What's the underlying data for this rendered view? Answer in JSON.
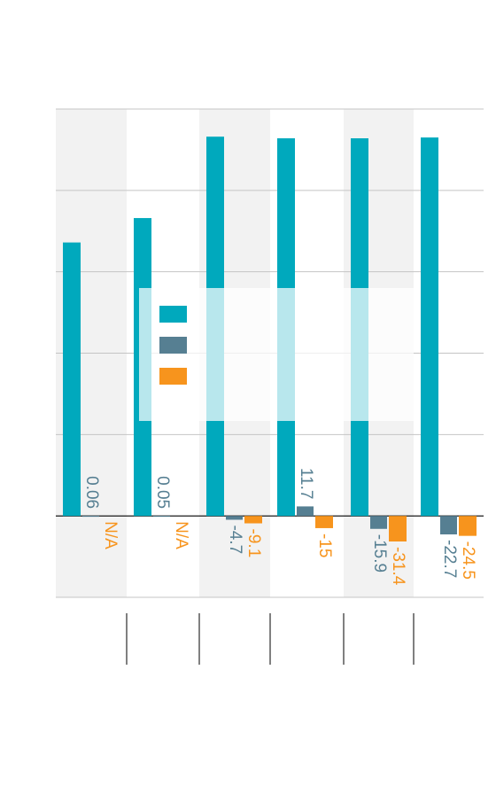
{
  "chart_data": {
    "type": "bar",
    "orientation": "rotated-90-clockwise",
    "categories": [
      "",
      "",
      "",
      "",
      "",
      ""
    ],
    "series": [
      {
        "color": "#00a9bd",
        "values": [
          336,
          366,
          466,
          464,
          464,
          465
        ],
        "labels": [
          null,
          null,
          null,
          null,
          null,
          null
        ]
      },
      {
        "color": "#567f92",
        "values": [
          0.06,
          0.05,
          -4.7,
          11.7,
          -15.9,
          -22.7
        ],
        "labels": [
          "0.06",
          "0.05",
          "-4.7",
          "11.7",
          "-15.9",
          "-22.7"
        ]
      },
      {
        "color": "#f7941d",
        "values": [
          null,
          null,
          -9.1,
          -15,
          -31.4,
          -24.5
        ],
        "labels": [
          "N/A",
          "N/A",
          "-9.1",
          "-15",
          "-31.4",
          "-24.5"
        ]
      }
    ],
    "ylim": [
      -100,
      500
    ],
    "grid": true,
    "legend": {
      "placement": "center",
      "colors": [
        "#00a9bd",
        "#567f92",
        "#f7941d"
      ]
    }
  }
}
